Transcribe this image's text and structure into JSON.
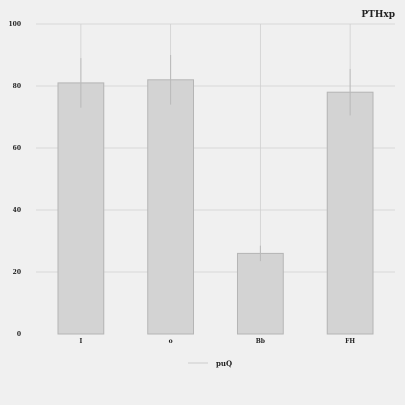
{
  "chart_data": {
    "type": "bar",
    "title": "PTHxp",
    "xlabel": "",
    "ylabel": "",
    "categories": [
      "I",
      "o",
      "Bb",
      "FH"
    ],
    "series": [
      {
        "name": "puQ",
        "values": [
          81,
          82,
          26,
          78
        ],
        "error": [
          8,
          8,
          2.5,
          7.5
        ]
      }
    ],
    "ylim": [
      0,
      100
    ],
    "yticks": [
      0,
      20,
      40,
      60,
      80,
      100
    ],
    "grid": true,
    "legend": "bottom-center",
    "colors": {
      "background": "#f0f0f0",
      "bar_fill": "#d3d3d3",
      "bar_edge": "#b5b5b5",
      "grid": "#d0d0d0",
      "error_bar": "#b8b8b8",
      "legend_line": "#cccccc",
      "text": "#222222"
    }
  }
}
